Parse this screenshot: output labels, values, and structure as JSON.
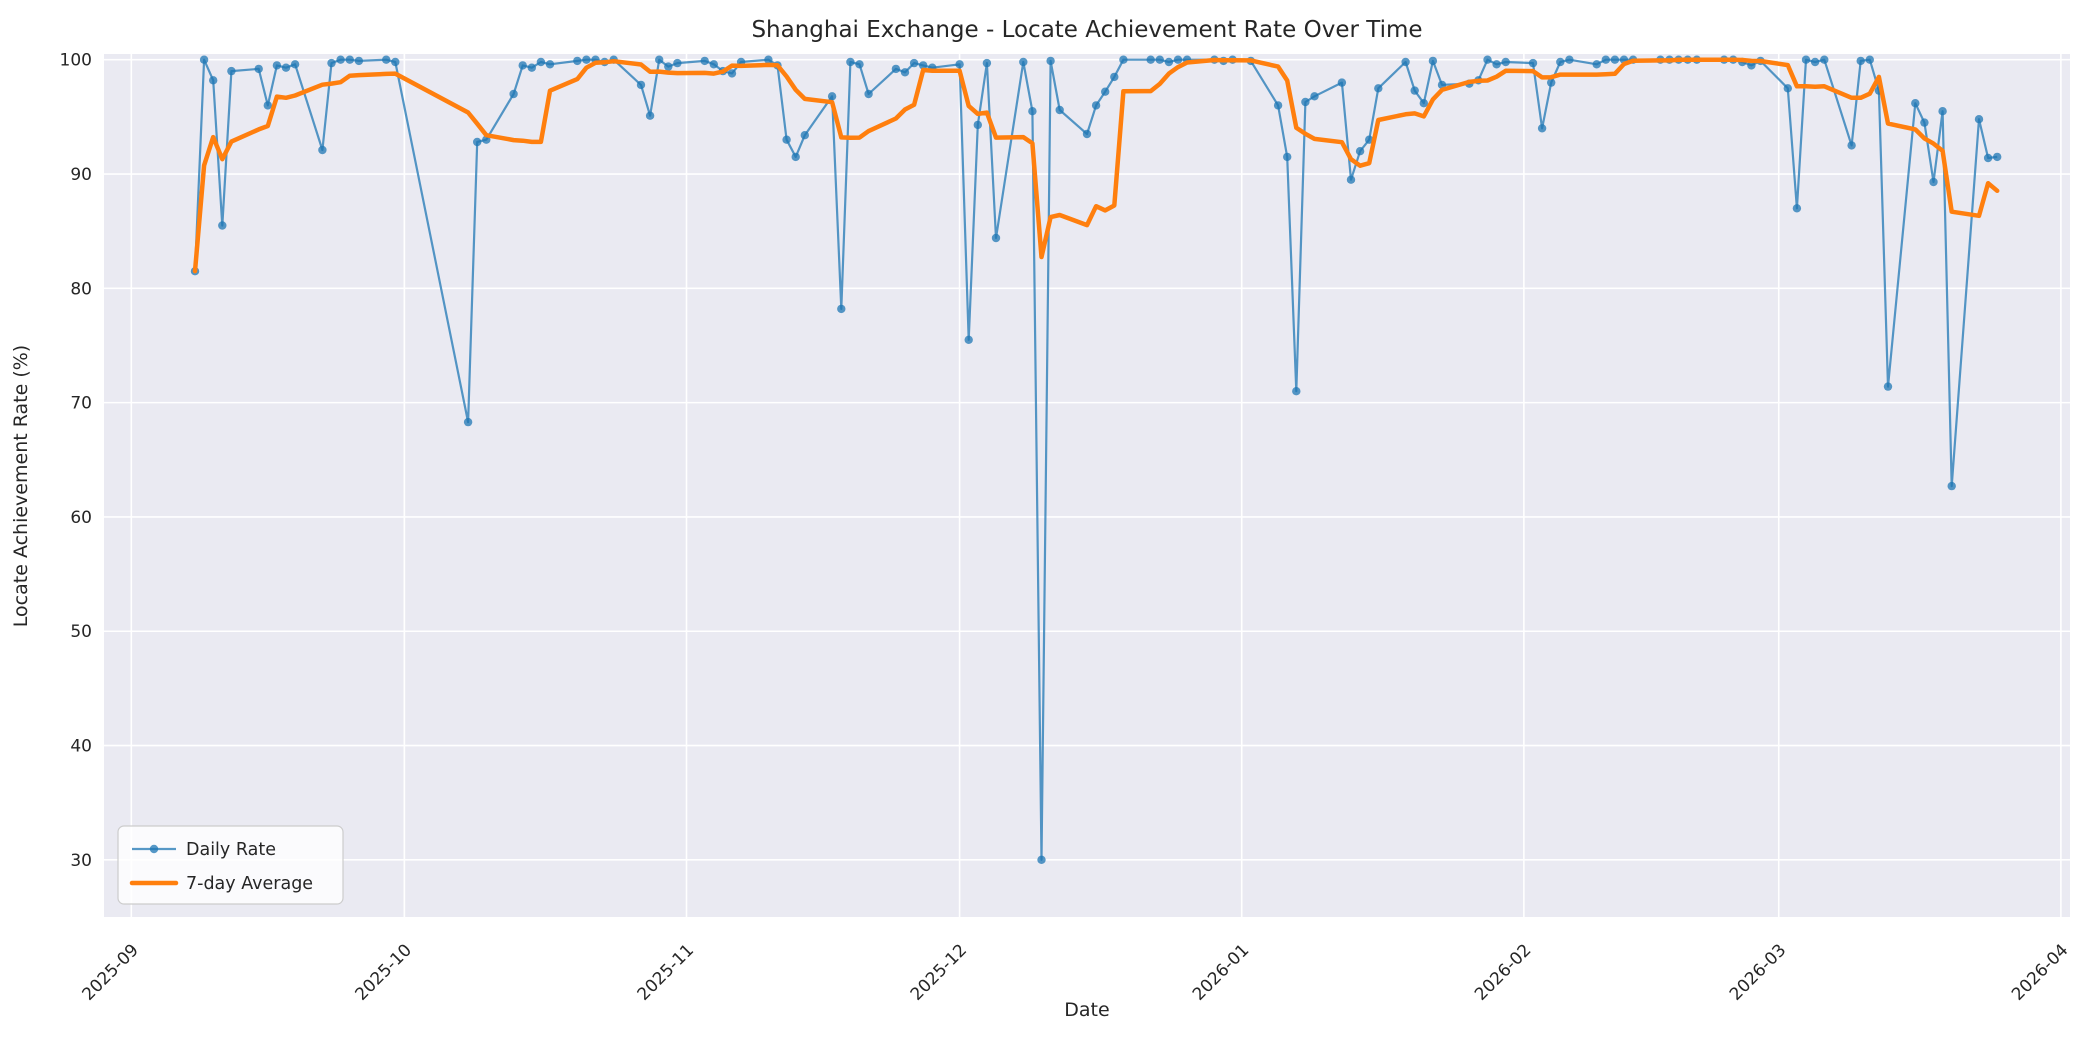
{
  "chart_data": {
    "type": "line",
    "title": "Shanghai Exchange - Locate Achievement Rate Over Time",
    "xlabel": "Date",
    "ylabel": "Locate Achievement Rate (%)",
    "background_color": "#eaeaf2",
    "grid": true,
    "grid_color": "#ffffff",
    "legend_position": "lower left",
    "ylim": [
      25,
      100.5
    ],
    "yticks": [
      30,
      40,
      50,
      60,
      70,
      80,
      90,
      100
    ],
    "xticks": [
      "2025-09",
      "2025-10",
      "2025-11",
      "2025-12",
      "2026-01",
      "2026-02",
      "2026-03",
      "2026-04"
    ],
    "xlim": [
      "2025-08-29",
      "2026-04-02"
    ],
    "dates": [
      "2025-09-08",
      "2025-09-09",
      "2025-09-10",
      "2025-09-11",
      "2025-09-12",
      "2025-09-15",
      "2025-09-16",
      "2025-09-17",
      "2025-09-18",
      "2025-09-19",
      "2025-09-22",
      "2025-09-23",
      "2025-09-24",
      "2025-09-25",
      "2025-09-26",
      "2025-09-29",
      "2025-09-30",
      "2025-10-08",
      "2025-10-09",
      "2025-10-10",
      "2025-10-13",
      "2025-10-14",
      "2025-10-15",
      "2025-10-16",
      "2025-10-17",
      "2025-10-20",
      "2025-10-21",
      "2025-10-22",
      "2025-10-23",
      "2025-10-24",
      "2025-10-27",
      "2025-10-28",
      "2025-10-29",
      "2025-10-30",
      "2025-10-31",
      "2025-11-03",
      "2025-11-04",
      "2025-11-05",
      "2025-11-06",
      "2025-11-07",
      "2025-11-10",
      "2025-11-11",
      "2025-11-12",
      "2025-11-13",
      "2025-11-14",
      "2025-11-17",
      "2025-11-18",
      "2025-11-19",
      "2025-11-20",
      "2025-11-21",
      "2025-11-24",
      "2025-11-25",
      "2025-11-26",
      "2025-11-27",
      "2025-11-28",
      "2025-12-01",
      "2025-12-02",
      "2025-12-03",
      "2025-12-04",
      "2025-12-05",
      "2025-12-08",
      "2025-12-09",
      "2025-12-10",
      "2025-12-11",
      "2025-12-12",
      "2025-12-15",
      "2025-12-16",
      "2025-12-17",
      "2025-12-18",
      "2025-12-19",
      "2025-12-22",
      "2025-12-23",
      "2025-12-24",
      "2025-12-25",
      "2025-12-26",
      "2025-12-29",
      "2025-12-30",
      "2025-12-31",
      "2026-01-02",
      "2026-01-05",
      "2026-01-06",
      "2026-01-07",
      "2026-01-08",
      "2026-01-09",
      "2026-01-12",
      "2026-01-13",
      "2026-01-14",
      "2026-01-15",
      "2026-01-16",
      "2026-01-19",
      "2026-01-20",
      "2026-01-21",
      "2026-01-22",
      "2026-01-23",
      "2026-01-26",
      "2026-01-27",
      "2026-01-28",
      "2026-01-29",
      "2026-01-30",
      "2026-02-02",
      "2026-02-03",
      "2026-02-04",
      "2026-02-05",
      "2026-02-06",
      "2026-02-09",
      "2026-02-10",
      "2026-02-11",
      "2026-02-12",
      "2026-02-13",
      "2026-02-16",
      "2026-02-17",
      "2026-02-18",
      "2026-02-19",
      "2026-02-20",
      "2026-02-23",
      "2026-02-24",
      "2026-02-25",
      "2026-02-26",
      "2026-02-27",
      "2026-03-02",
      "2026-03-03",
      "2026-03-04",
      "2026-03-05",
      "2026-03-06",
      "2026-03-09",
      "2026-03-10",
      "2026-03-11",
      "2026-03-12",
      "2026-03-13",
      "2026-03-16",
      "2026-03-17",
      "2026-03-18",
      "2026-03-19",
      "2026-03-20",
      "2026-03-23",
      "2026-03-24",
      "2026-03-25"
    ],
    "series": [
      {
        "name": "Daily Rate",
        "color": "#1f77b4",
        "opacity": 0.75,
        "marker": "circle",
        "values": [
          81.5,
          100,
          98.2,
          85.5,
          99.0,
          99.2,
          96.0,
          99.5,
          99.3,
          99.6,
          92.1,
          99.7,
          100,
          100,
          99.9,
          100,
          99.8,
          68.3,
          92.8,
          93.0,
          97.0,
          99.5,
          99.3,
          99.8,
          99.6,
          99.9,
          100,
          100,
          99.8,
          100,
          97.8,
          95.1,
          100,
          99.4,
          99.7,
          99.9,
          99.6,
          99.0,
          98.8,
          99.8,
          100,
          99.5,
          93.0,
          91.5,
          93.4,
          96.8,
          78.2,
          99.8,
          99.6,
          97.0,
          99.2,
          98.9,
          99.7,
          99.5,
          99.3,
          99.6,
          75.5,
          94.3,
          99.7,
          84.4,
          99.8,
          95.5,
          30.0,
          99.9,
          95.6,
          93.5,
          96.0,
          97.2,
          98.5,
          100,
          100,
          100,
          99.8,
          100,
          100,
          100,
          99.9,
          100,
          99.9,
          96.0,
          91.5,
          71.0,
          96.3,
          96.8,
          98.0,
          89.5,
          92.0,
          93.0,
          97.5,
          99.8,
          97.3,
          96.2,
          99.9,
          97.8,
          97.9,
          98.2,
          100,
          99.6,
          99.8,
          99.7,
          94.0,
          98.0,
          99.8,
          100,
          99.6,
          100,
          100,
          100,
          100,
          100,
          100,
          100,
          100,
          100,
          100,
          100,
          99.8,
          99.5,
          99.9,
          97.5,
          87.0,
          100,
          99.8,
          100,
          92.5,
          99.9,
          100,
          97.3,
          71.4,
          96.2,
          94.5,
          89.3,
          95.5,
          62.7,
          94.8,
          91.4,
          91.5
        ]
      },
      {
        "name": "7-day Average",
        "color": "#ff7f0e",
        "opacity": 1.0,
        "derived": "rolling_mean",
        "window": 7
      }
    ]
  }
}
